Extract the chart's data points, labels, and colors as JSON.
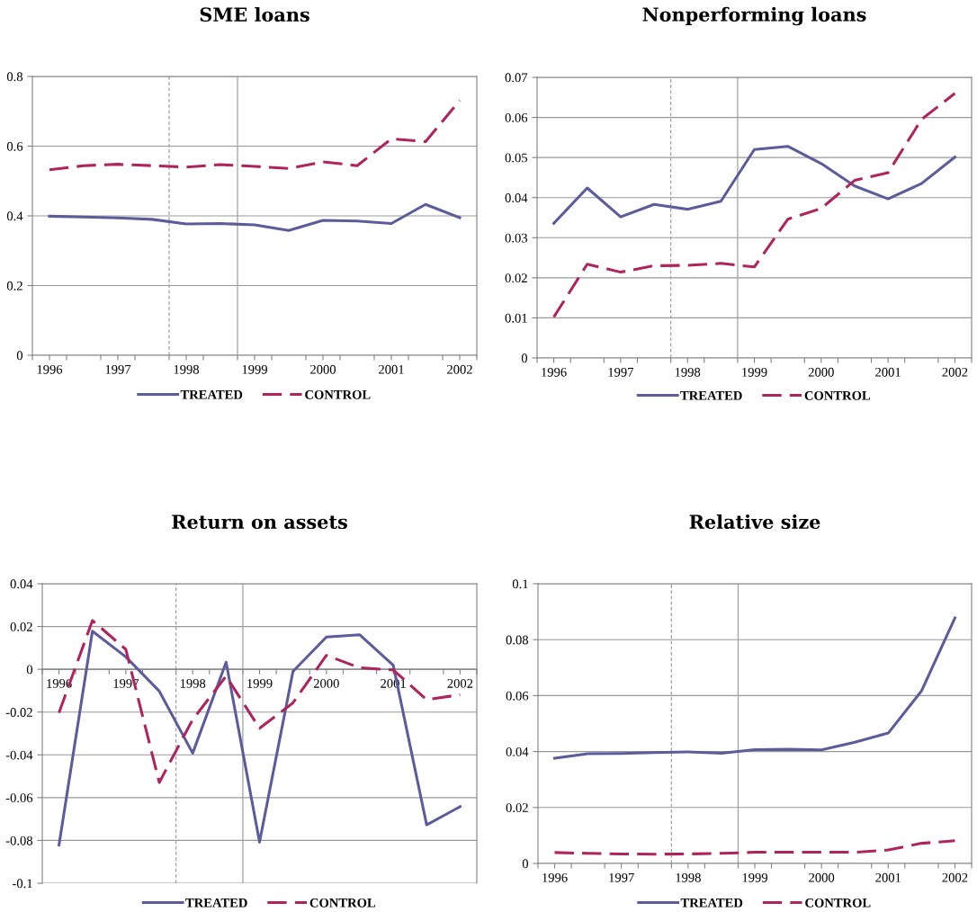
{
  "chart_data": [
    {
      "type": "line",
      "title": "SME loans",
      "x": [
        1996,
        1996.5,
        1997,
        1997.5,
        1998,
        1998.5,
        1999,
        1999.5,
        2000,
        2000.5,
        2001,
        2001.5,
        2002
      ],
      "xlim": [
        1995.75,
        2002.25
      ],
      "xticks": [
        {
          "value": 1995.75,
          "label": null
        },
        1996,
        {
          "value": 1996.25,
          "label": null
        },
        {
          "value": 1996.75,
          "label": null
        },
        1997,
        {
          "value": 1997.25,
          "label": null
        },
        {
          "value": 1997.75,
          "label": null
        },
        1998,
        {
          "value": 1998.25,
          "label": null
        },
        {
          "value": 1998.75,
          "label": null
        },
        1999,
        {
          "value": 1999.25,
          "label": null
        },
        {
          "value": 1999.75,
          "label": null
        },
        2000,
        {
          "value": 2000.25,
          "label": null
        },
        {
          "value": 2000.75,
          "label": null
        },
        2001,
        {
          "value": 2001.25,
          "label": null
        },
        {
          "value": 2001.75,
          "label": null
        },
        2002,
        {
          "value": 2002.25,
          "label": null
        }
      ],
      "ylim": [
        0,
        0.8
      ],
      "yticks": [
        0,
        0.2,
        0.4,
        0.6,
        0.8
      ],
      "grid": "y",
      "legend": "bottom",
      "ref_lines": [
        {
          "axis": "x",
          "value": 1997.75,
          "line_style": "dashed",
          "color": "#a0a0a0"
        },
        {
          "axis": "x",
          "value": 1998.75,
          "line_style": "solid",
          "color": "#a0a0a0"
        }
      ],
      "series": [
        {
          "name": "TREATED",
          "color": "#5c5c9c",
          "line_style": "solid",
          "values": [
            0.399,
            0.397,
            0.394,
            0.39,
            0.377,
            0.378,
            0.374,
            0.358,
            0.387,
            0.385,
            0.378,
            0.433,
            0.395
          ]
        },
        {
          "name": "CONTROL",
          "color": "#b0245e",
          "line_style": "dashed",
          "values": [
            0.532,
            0.544,
            0.548,
            0.544,
            0.54,
            0.547,
            0.542,
            0.536,
            0.555,
            0.544,
            0.621,
            0.613,
            0.731
          ]
        }
      ]
    },
    {
      "type": "line",
      "title": "Nonperforming loans",
      "x": [
        1996,
        1996.5,
        1997,
        1997.5,
        1998,
        1998.5,
        1999,
        1999.5,
        2000,
        2000.5,
        2001,
        2001.5,
        2002
      ],
      "xlim": [
        1995.75,
        2002.25
      ],
      "xticks": [
        {
          "value": 1995.75,
          "label": null
        },
        1996,
        {
          "value": 1996.25,
          "label": null
        },
        {
          "value": 1996.75,
          "label": null
        },
        1997,
        {
          "value": 1997.25,
          "label": null
        },
        {
          "value": 1997.75,
          "label": null
        },
        1998,
        {
          "value": 1998.25,
          "label": null
        },
        {
          "value": 1998.75,
          "label": null
        },
        1999,
        {
          "value": 1999.25,
          "label": null
        },
        {
          "value": 1999.75,
          "label": null
        },
        2000,
        {
          "value": 2000.25,
          "label": null
        },
        {
          "value": 2000.75,
          "label": null
        },
        2001,
        {
          "value": 2001.25,
          "label": null
        },
        {
          "value": 2001.75,
          "label": null
        },
        2002,
        {
          "value": 2002.25,
          "label": null
        }
      ],
      "ylim": [
        0,
        0.07
      ],
      "yticks": [
        0,
        0.01,
        0.02,
        0.03,
        0.04,
        0.05,
        0.06,
        0.07
      ],
      "grid": "y",
      "legend": "bottom",
      "ref_lines": [
        {
          "axis": "x",
          "value": 1997.75,
          "line_style": "dashed",
          "color": "#a0a0a0"
        },
        {
          "axis": "x",
          "value": 1998.75,
          "line_style": "solid",
          "color": "#a0a0a0"
        }
      ],
      "series": [
        {
          "name": "TREATED",
          "color": "#5c5c9c",
          "line_style": "solid",
          "values": [
            0.0336,
            0.0424,
            0.0352,
            0.0383,
            0.0371,
            0.0391,
            0.052,
            0.0528,
            0.0485,
            0.0429,
            0.0397,
            0.0435,
            0.0501
          ]
        },
        {
          "name": "CONTROL",
          "color": "#b0245e",
          "line_style": "dashed",
          "values": [
            0.0102,
            0.0234,
            0.0214,
            0.023,
            0.0231,
            0.0236,
            0.0227,
            0.0346,
            0.0373,
            0.0443,
            0.0462,
            0.0595,
            0.066
          ]
        }
      ]
    },
    {
      "type": "line",
      "title": "Return on assets",
      "x": [
        1996,
        1996.5,
        1997,
        1997.5,
        1998,
        1998.5,
        1999,
        1999.5,
        2000,
        2000.5,
        2001,
        2001.5,
        2002
      ],
      "xlim": [
        1995.75,
        2002.25
      ],
      "xticks": [
        {
          "value": 1995.75,
          "label": null
        },
        1996,
        {
          "value": 1996.25,
          "label": null
        },
        {
          "value": 1996.75,
          "label": null
        },
        1997,
        {
          "value": 1997.25,
          "label": null
        },
        {
          "value": 1997.75,
          "label": null
        },
        1998,
        {
          "value": 1998.25,
          "label": null
        },
        {
          "value": 1998.75,
          "label": null
        },
        1999,
        {
          "value": 1999.25,
          "label": null
        },
        {
          "value": 1999.75,
          "label": null
        },
        2000,
        {
          "value": 2000.25,
          "label": null
        },
        {
          "value": 2000.75,
          "label": null
        },
        2001,
        {
          "value": 2001.25,
          "label": null
        },
        {
          "value": 2001.75,
          "label": null
        },
        2002,
        {
          "value": 2002.25,
          "label": null
        }
      ],
      "ylim": [
        -0.1,
        0.04
      ],
      "yticks": [
        -0.1,
        -0.08,
        -0.06,
        -0.04,
        -0.02,
        0,
        0.02,
        0.04
      ],
      "grid": "y",
      "legend": "bottom",
      "ref_lines": [
        {
          "axis": "x",
          "value": 1997.75,
          "line_style": "dashed",
          "color": "#a0a0a0"
        },
        {
          "axis": "x",
          "value": 1998.75,
          "line_style": "solid",
          "color": "#a0a0a0"
        }
      ],
      "series": [
        {
          "name": "TREATED",
          "color": "#5c5c9c",
          "line_style": "solid",
          "values": [
            -0.0821,
            0.0178,
            0.0058,
            -0.0102,
            -0.0392,
            0.0033,
            -0.0808,
            -0.001,
            0.0151,
            0.0161,
            0.0019,
            -0.0727,
            -0.0642
          ]
        },
        {
          "name": "CONTROL",
          "color": "#b0245e",
          "line_style": "dashed",
          "values": [
            -0.0203,
            0.0228,
            0.0093,
            -0.0529,
            -0.0235,
            -0.0032,
            -0.0276,
            -0.0157,
            0.0065,
            0.0007,
            -0.0003,
            -0.0142,
            -0.0119
          ]
        }
      ]
    },
    {
      "type": "line",
      "title": "Relative size",
      "x": [
        1996,
        1996.5,
        1997,
        1997.5,
        1998,
        1998.5,
        1999,
        1999.5,
        2000,
        2000.5,
        2001,
        2001.5,
        2002
      ],
      "xlim": [
        1995.75,
        2002.25
      ],
      "xticks": [
        {
          "value": 1995.75,
          "label": null
        },
        1996,
        {
          "value": 1996.25,
          "label": null
        },
        {
          "value": 1996.75,
          "label": null
        },
        1997,
        {
          "value": 1997.25,
          "label": null
        },
        {
          "value": 1997.75,
          "label": null
        },
        1998,
        {
          "value": 1998.25,
          "label": null
        },
        {
          "value": 1998.75,
          "label": null
        },
        1999,
        {
          "value": 1999.25,
          "label": null
        },
        {
          "value": 1999.75,
          "label": null
        },
        2000,
        {
          "value": 2000.25,
          "label": null
        },
        {
          "value": 2000.75,
          "label": null
        },
        2001,
        {
          "value": 2001.25,
          "label": null
        },
        {
          "value": 2001.75,
          "label": null
        },
        2002,
        {
          "value": 2002.25,
          "label": null
        }
      ],
      "ylim": [
        0,
        0.1
      ],
      "yticks": [
        0,
        0.02,
        0.04,
        0.06,
        0.08,
        0.1
      ],
      "grid": "y",
      "legend": "bottom",
      "ref_lines": [
        {
          "axis": "x",
          "value": 1997.75,
          "line_style": "dashed",
          "color": "#a0a0a0"
        },
        {
          "axis": "x",
          "value": 1998.75,
          "line_style": "solid",
          "color": "#a0a0a0"
        }
      ],
      "series": [
        {
          "name": "TREATED",
          "color": "#5c5c9c",
          "line_style": "solid",
          "values": [
            0.0376,
            0.0392,
            0.0393,
            0.0396,
            0.0399,
            0.0394,
            0.0407,
            0.0408,
            0.0406,
            0.0433,
            0.0466,
            0.0617,
            0.0878
          ]
        },
        {
          "name": "CONTROL",
          "color": "#b0245e",
          "line_style": "dashed",
          "values": [
            0.0039,
            0.0036,
            0.0034,
            0.0033,
            0.0034,
            0.0036,
            0.004,
            0.004,
            0.004,
            0.004,
            0.0048,
            0.0072,
            0.0081
          ]
        }
      ]
    }
  ]
}
